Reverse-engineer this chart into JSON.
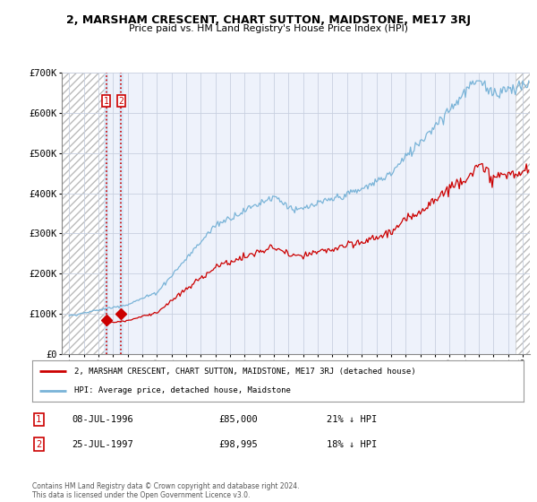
{
  "title": "2, MARSHAM CRESCENT, CHART SUTTON, MAIDSTONE, ME17 3RJ",
  "subtitle": "Price paid vs. HM Land Registry's House Price Index (HPI)",
  "legend_line1": "2, MARSHAM CRESCENT, CHART SUTTON, MAIDSTONE, ME17 3RJ (detached house)",
  "legend_line2": "HPI: Average price, detached house, Maidstone",
  "transaction1_date": "08-JUL-1996",
  "transaction1_price": "£85,000",
  "transaction1_hpi": "21% ↓ HPI",
  "transaction2_date": "25-JUL-1997",
  "transaction2_price": "£98,995",
  "transaction2_hpi": "18% ↓ HPI",
  "footnote": "Contains HM Land Registry data © Crown copyright and database right 2024.\nThis data is licensed under the Open Government Licence v3.0.",
  "sale1_year": 1996.54,
  "sale1_value": 85000,
  "sale2_year": 1997.56,
  "sale2_value": 98995,
  "hpi_color": "#7ab4d8",
  "price_color": "#cc0000",
  "bg_color": "#eef2fb",
  "grid_color": "#c8d0e0",
  "ylim": [
    0,
    700000
  ],
  "xlim_start": 1993.5,
  "xlim_end": 2025.5
}
